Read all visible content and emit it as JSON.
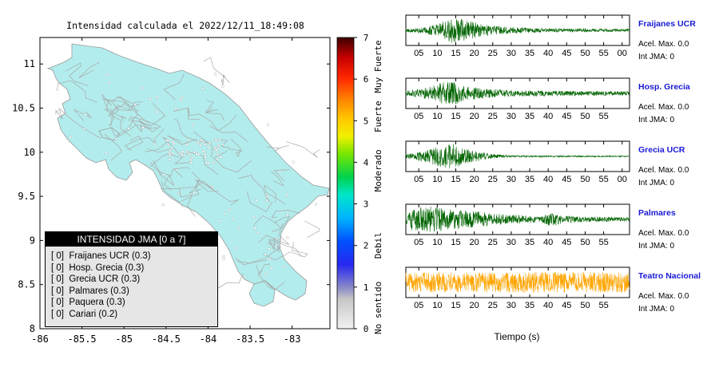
{
  "map": {
    "title": "Intensidad calculada el 2022/12/11_18:49:08",
    "x_ticks": [
      "-86",
      "-85.5",
      "-85",
      "-84.5",
      "-84",
      "-83.5",
      "-83"
    ],
    "y_ticks": [
      "8",
      "8.5",
      "9",
      "9.5",
      "10",
      "10.5",
      "11"
    ],
    "land_color": "#b3ecec",
    "legend": {
      "title": "INTENSIDAD JMA [0 a 7]",
      "items": [
        "[ 0]  Fraijanes UCR (0.3)",
        "[ 0]  Hosp. Grecia (0.3)",
        "[ 0]  Grecia UCR (0.3)",
        "[ 0]  Palmares (0.3)",
        "[ 0]  Paquera (0.3)",
        "[ 0]  Cariari (0.2)"
      ]
    }
  },
  "colorbar": {
    "ticks": [
      "0",
      "1",
      "2",
      "3",
      "4",
      "5",
      "6",
      "7"
    ],
    "labels": [
      "No sentido",
      "Debil",
      "Moderado",
      "Fuerte",
      "Muy Fuerte"
    ]
  },
  "chart_data": [
    {
      "type": "map",
      "title": "Intensidad calculada el 2022/12/11_18:49:08",
      "xlim": [
        -86,
        -82.55
      ],
      "ylim": [
        8,
        11.3
      ],
      "stations": [
        {
          "name": "Fraijanes UCR",
          "intensity": 0,
          "value": 0.3
        },
        {
          "name": "Hosp. Grecia",
          "intensity": 0,
          "value": 0.3
        },
        {
          "name": "Grecia UCR",
          "intensity": 0,
          "value": 0.3
        },
        {
          "name": "Palmares",
          "intensity": 0,
          "value": 0.3
        },
        {
          "name": "Paquera",
          "intensity": 0,
          "value": 0.3
        },
        {
          "name": "Cariari",
          "intensity": 0,
          "value": 0.2
        }
      ]
    },
    {
      "type": "line",
      "xlabel": "Tiempo (s)",
      "series": [
        {
          "name": "Fraijanes UCR",
          "accel_label": "Acel. Max. 0.0",
          "jma_label": "Int JMA: 0",
          "color": "#006400",
          "ticks": [
            "05",
            "10",
            "15",
            "20",
            "25",
            "30",
            "35",
            "40",
            "45",
            "50",
            "55",
            "00"
          ],
          "envelope": [
            [
              0,
              0.1
            ],
            [
              6,
              0.2
            ],
            [
              10,
              0.45
            ],
            [
              14,
              0.95
            ],
            [
              18,
              0.7
            ],
            [
              24,
              0.35
            ],
            [
              30,
              0.22
            ],
            [
              40,
              0.14
            ],
            [
              60,
              0.1
            ]
          ]
        },
        {
          "name": "Hosp. Grecia",
          "accel_label": "Acel. Max. 0.0",
          "jma_label": "Int JMA: 0",
          "color": "#006400",
          "ticks": [
            "05",
            "10",
            "15",
            "20",
            "25",
            "30",
            "35",
            "40",
            "45",
            "50",
            "55"
          ],
          "envelope": [
            [
              0,
              0.12
            ],
            [
              5,
              0.3
            ],
            [
              9,
              0.55
            ],
            [
              13,
              0.95
            ],
            [
              17,
              0.6
            ],
            [
              22,
              0.35
            ],
            [
              30,
              0.22
            ],
            [
              45,
              0.18
            ],
            [
              60,
              0.15
            ]
          ]
        },
        {
          "name": "Grecia UCR",
          "accel_label": "Acel. Max. 0.0",
          "jma_label": "Int JMA: 0",
          "color": "#006400",
          "ticks": [
            "05",
            "10",
            "15",
            "20",
            "25",
            "30",
            "35",
            "40",
            "45",
            "50",
            "55",
            "00"
          ],
          "envelope": [
            [
              0,
              0.08
            ],
            [
              6,
              0.35
            ],
            [
              10,
              0.7
            ],
            [
              14,
              0.95
            ],
            [
              18,
              0.5
            ],
            [
              24,
              0.2
            ],
            [
              30,
              0.06
            ],
            [
              60,
              0.04
            ]
          ]
        },
        {
          "name": "Palmares",
          "accel_label": "Acel. Max. 0.0",
          "jma_label": "Int JMA: 0",
          "color": "#006400",
          "ticks": [
            "05",
            "10",
            "15",
            "20",
            "25",
            "30",
            "35",
            "40",
            "45",
            "50",
            "55"
          ],
          "envelope": [
            [
              0,
              0.5
            ],
            [
              4,
              0.85
            ],
            [
              9,
              0.95
            ],
            [
              14,
              0.75
            ],
            [
              20,
              0.6
            ],
            [
              26,
              0.4
            ],
            [
              32,
              0.3
            ],
            [
              38,
              0.2
            ],
            [
              41,
              0.55
            ],
            [
              44,
              0.25
            ],
            [
              50,
              0.2
            ],
            [
              60,
              0.15
            ]
          ]
        },
        {
          "name": "Teatro Nacional",
          "accel_label": "Acel. Max. 0.0",
          "jma_label": "Int JMA: 0",
          "color": "#ffa500",
          "ticks": [
            "05",
            "10",
            "15",
            "20",
            "25",
            "30",
            "35",
            "40",
            "45",
            "50",
            "55"
          ],
          "envelope": [
            [
              0,
              0.7
            ],
            [
              60,
              0.75
            ]
          ]
        }
      ]
    }
  ]
}
